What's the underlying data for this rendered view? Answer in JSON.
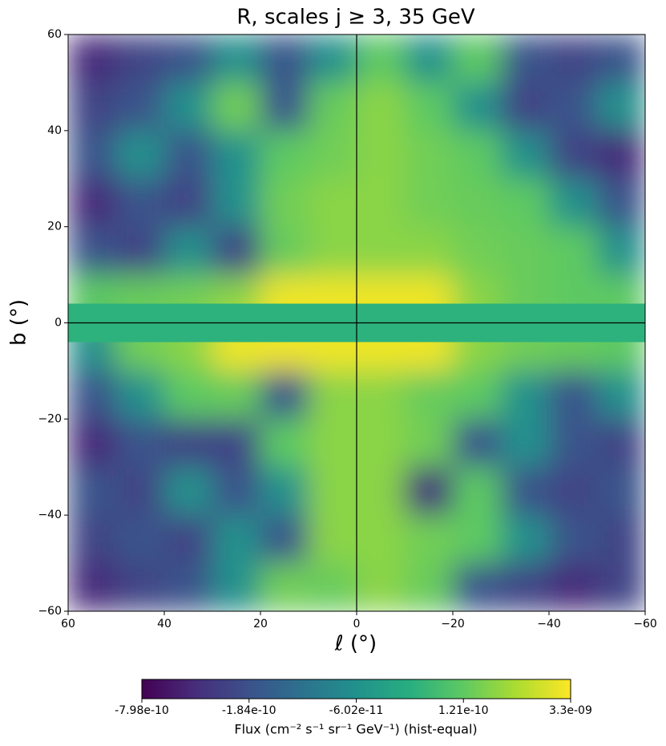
{
  "chart_data": {
    "type": "heatmap",
    "title": "R, scales j ≥ 3, 35 GeV",
    "xlabel": "ℓ (°)",
    "ylabel": "b (°)",
    "colorbar_label": "Flux (cm⁻² s⁻¹ sr⁻¹ GeV⁻¹) (hist-equal)",
    "colormap": "viridis",
    "x": [
      55,
      45,
      35,
      25,
      15,
      5,
      -5,
      -15,
      -25,
      -35,
      -45,
      -55
    ],
    "y": [
      55,
      45,
      35,
      25,
      15,
      5,
      -5,
      -15,
      -25,
      -35,
      -45,
      -55
    ],
    "z": [
      [
        -5e-10,
        -3e-10,
        -1.8e-10,
        -6e-11,
        -1.8e-10,
        -6e-11,
        1.2e-10,
        -6e-11,
        1.2e-10,
        -1.8e-10,
        -3e-10,
        -1.8e-10
      ],
      [
        -3e-10,
        -1.8e-10,
        -6e-11,
        5e-10,
        -1.8e-10,
        3e-10,
        1e-09,
        1.2e-10,
        -6e-11,
        -3e-10,
        -1.8e-10,
        -6e-11
      ],
      [
        -1.8e-10,
        -6e-11,
        -1.8e-10,
        -6e-11,
        1.2e-10,
        5e-10,
        1e-09,
        5e-10,
        1.2e-10,
        -6e-11,
        -3e-10,
        -5e-10
      ],
      [
        -5e-10,
        -1.8e-10,
        -3e-10,
        -6e-11,
        5e-10,
        1e-09,
        1e-09,
        5e-10,
        3e-10,
        1.2e-10,
        -6e-11,
        -1.8e-10
      ],
      [
        -1.8e-10,
        -3e-10,
        -6e-11,
        -3e-10,
        3e-10,
        1e-09,
        1e-09,
        1e-09,
        5e-10,
        3e-10,
        1.2e-10,
        -6e-11
      ],
      [
        1.2e-10,
        3e-10,
        5e-10,
        1e-09,
        3e-09,
        3e-09,
        3e-09,
        3e-09,
        1e-09,
        3e-10,
        1.2e-10,
        1.2e-10
      ],
      [
        -6e-11,
        5e-10,
        1e-09,
        3e-09,
        3e-09,
        3e-09,
        3e-09,
        3e-09,
        1e-09,
        5e-10,
        3e-10,
        1.2e-10
      ],
      [
        -1.8e-10,
        -6e-11,
        1.2e-10,
        3e-10,
        -1.8e-10,
        1e-09,
        1e-09,
        3e-10,
        1.2e-10,
        -6e-11,
        -1.8e-10,
        -6e-11
      ],
      [
        -5e-10,
        -1.8e-10,
        -3e-10,
        -3e-10,
        1.2e-10,
        1e-09,
        1e-09,
        5e-10,
        -1.8e-10,
        -6e-11,
        -1.8e-10,
        -3e-10
      ],
      [
        -1.8e-10,
        -3e-10,
        -6e-11,
        -1.8e-10,
        -6e-11,
        1e-09,
        1e-09,
        -5e-10,
        1.2e-10,
        -1.8e-10,
        -3e-10,
        -1.8e-10
      ],
      [
        -3e-10,
        -1.8e-10,
        -3e-10,
        -6e-11,
        -1.8e-10,
        1e-09,
        1e-09,
        5e-10,
        1.2e-10,
        -6e-11,
        -1.8e-10,
        -3e-10
      ],
      [
        -5e-10,
        -3e-10,
        -1.8e-10,
        -6e-11,
        5e-10,
        3e-10,
        1e-09,
        3e-10,
        -1.8e-10,
        -3e-10,
        -5e-10,
        -3e-10
      ]
    ],
    "mask_blim": [
      -4,
      4
    ],
    "mask_color": "#2db27d",
    "xlim": [
      60,
      -60
    ],
    "ylim": [
      -60,
      60
    ],
    "xticks": [
      60,
      40,
      20,
      0,
      {
        "value": -20,
        "label": "−20"
      },
      {
        "value": -40,
        "label": "−40"
      },
      {
        "value": -60,
        "label": "−60"
      }
    ],
    "yticks": [
      {
        "value": -60,
        "label": "−60"
      },
      {
        "value": -40,
        "label": "−40"
      },
      {
        "value": -20,
        "label": "−20"
      },
      0,
      20,
      40,
      60
    ],
    "cticks": [
      {
        "value": -7.98e-10,
        "label": "-7.98e-10"
      },
      {
        "value": -1.84e-10,
        "label": "-1.84e-10"
      },
      {
        "value": -6.02e-11,
        "label": "-6.02e-11"
      },
      {
        "value": 1.21e-10,
        "label": "1.21e-10"
      },
      {
        "value": 3.3e-09,
        "label": "3.3e-09"
      }
    ]
  }
}
